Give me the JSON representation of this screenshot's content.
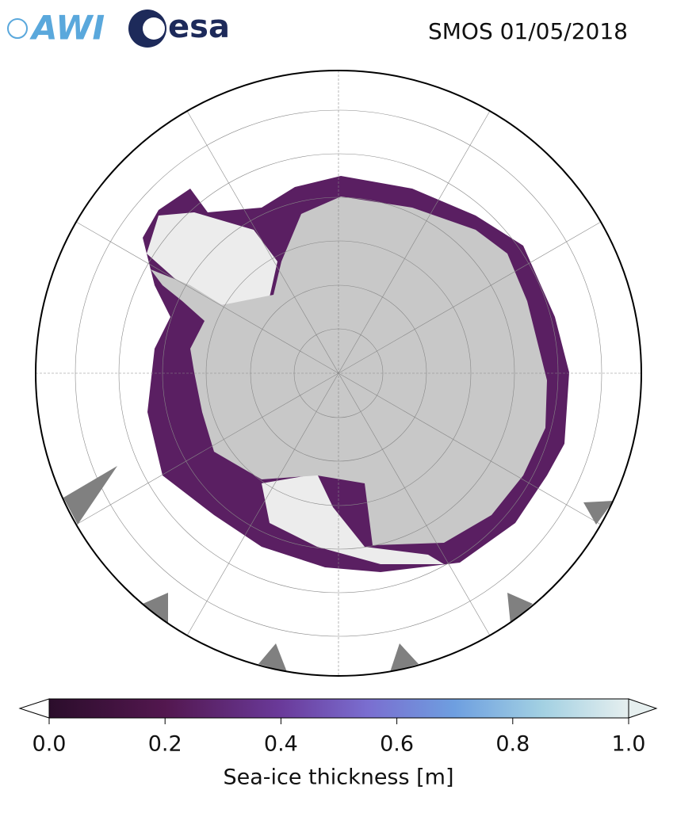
{
  "header": {
    "logo_awi": "AWI",
    "logo_esa": "esa",
    "title": "SMOS 01/05/2018"
  },
  "colorbar": {
    "label": "Sea-ice thickness [m]",
    "lim": [
      0,
      1
    ],
    "ticks": [
      {
        "value": 0,
        "label": "0.0"
      },
      0.2,
      0.4,
      0.6,
      0.8,
      {
        "value": 1,
        "label": "1.0"
      }
    ]
  }
}
